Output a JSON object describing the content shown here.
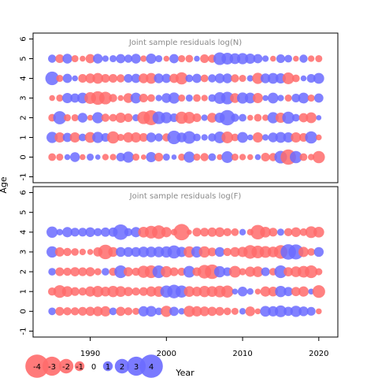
{
  "chart_data": {
    "type": "scatter",
    "subtype": "bubble-residual",
    "xlabel": "Year",
    "ylabel": "Age",
    "xlim": [
      1982.5,
      2022.5
    ],
    "ylim": [
      -1.3,
      6.3
    ],
    "x_ticks": [
      1990,
      2000,
      2010,
      2020
    ],
    "y_ticks": [
      -1,
      0,
      1,
      2,
      3,
      4,
      5,
      6
    ],
    "colors": {
      "positive": "#6b6bff",
      "negative": "#ff6b6b"
    },
    "legend": {
      "position": "bottom-left",
      "values": [
        -4,
        -3,
        -2,
        -1,
        0,
        1,
        2,
        3,
        4
      ]
    },
    "panels": [
      {
        "title": "Joint sample residuals log(N)",
        "years": [
          1985,
          1986,
          1987,
          1988,
          1989,
          1990,
          1991,
          1992,
          1993,
          1994,
          1995,
          1996,
          1997,
          1998,
          1999,
          2000,
          2001,
          2002,
          2003,
          2004,
          2005,
          2006,
          2007,
          2008,
          2009,
          2010,
          2011,
          2012,
          2013,
          2014,
          2015,
          2016,
          2017,
          2018,
          2019,
          2020
        ],
        "ages": [
          0,
          1,
          2,
          3,
          4,
          5
        ],
        "residuals": [
          [
            -0.6,
            -0.5,
            0.3,
            1.0,
            -0.3,
            0.5,
            0.2,
            -0.4,
            -0.4,
            0.8,
            1.3,
            -0.5,
            -0.2,
            1.1,
            -0.8,
            0.5,
            0.2,
            -0.5,
            1.3,
            -0.5,
            -0.7,
            0.6,
            -0.3,
            1.4,
            -0.5,
            -0.4,
            -0.3,
            0.3,
            -0.8,
            -0.7,
            1.6,
            -2.2,
            1.5,
            -0.6,
            -0.4,
            -1.5
          ],
          [
            1.3,
            -1.1,
            0.9,
            -1.1,
            0.6,
            -1.2,
            1.3,
            0.8,
            -1.5,
            -0.5,
            -1.1,
            -1.1,
            -0.8,
            1.0,
            0.7,
            -0.7,
            1.8,
            1.0,
            1.6,
            0.6,
            0.4,
            0.7,
            1.4,
            -1.4,
            -0.6,
            1.2,
            0.3,
            -1.1,
            0.4,
            1.0,
            1.2,
            1.1,
            -1.1,
            -0.8,
            1.5,
            -0.3
          ],
          [
            -0.6,
            1.7,
            -0.5,
            -0.5,
            1.0,
            -0.3,
            1.3,
            -0.7,
            -0.6,
            -1.1,
            -0.8,
            0.5,
            -1.6,
            -2.1,
            1.6,
            1.3,
            0.8,
            -1.5,
            -1.4,
            -0.8,
            0.4,
            -1.0,
            1.1,
            2.2,
            0.7,
            0.6,
            -0.3,
            -0.6,
            -0.4,
            1.3,
            -1.1,
            1.5,
            0.6,
            -0.9,
            -1.2,
            0.2
          ],
          [
            -0.3,
            -0.5,
            1.1,
            0.9,
            1.2,
            -1.4,
            -1.8,
            -1.6,
            -0.7,
            -0.3,
            -1.0,
            1.2,
            -0.8,
            -0.6,
            0.4,
            1.0,
            1.3,
            -0.5,
            0.5,
            -0.6,
            -0.4,
            0.6,
            1.4,
            1.6,
            -1.0,
            1.3,
            1.2,
            -1.1,
            0.3,
            1.2,
            0.4,
            -0.5,
            0.8,
            1.2,
            -0.5,
            0.9
          ],
          [
            1.8,
            -0.5,
            0.9,
            0.3,
            -0.8,
            -1.0,
            -1.2,
            -0.8,
            -0.8,
            -0.7,
            0.8,
            0.9,
            -1.0,
            -1.2,
            1.0,
            0.9,
            -0.9,
            -1.5,
            0.6,
            0.9,
            -0.6,
            0.7,
            1.0,
            1.0,
            -0.7,
            -0.5,
            0.4,
            -1.3,
            1.0,
            1.2,
            1.1,
            -1.4,
            -0.6,
            0.3,
            0.8,
            1.2
          ],
          [
            0.7,
            -0.8,
            1.0,
            -0.5,
            -0.3,
            -0.9,
            1.0,
            0.4,
            0.5,
            0.9,
            0.7,
            1.0,
            -0.4,
            1.1,
            0.5,
            -0.3,
            0.9,
            -0.5,
            -0.6,
            0.3,
            -0.8,
            -0.7,
            1.6,
            1.4,
            1.2,
            1.3,
            1.1,
            0.9,
            0.4,
            -0.3,
            0.8,
            0.6,
            -0.3,
            0.7,
            -0.4,
            -0.5
          ]
        ]
      },
      {
        "title": "Joint sample residuals log(F)",
        "years": [
          1985,
          1986,
          1987,
          1988,
          1989,
          1990,
          1991,
          1992,
          1993,
          1994,
          1995,
          1996,
          1997,
          1998,
          1999,
          2000,
          2001,
          2002,
          2003,
          2004,
          2005,
          2006,
          2007,
          2008,
          2009,
          2010,
          2011,
          2012,
          2013,
          2014,
          2015,
          2016,
          2017,
          2018,
          2019,
          2020
        ],
        "ages": [
          0,
          1,
          2,
          3,
          4
        ],
        "residuals": [
          [
            0.6,
            -0.8,
            -0.7,
            -0.7,
            -0.8,
            -0.9,
            -1.0,
            -1.1,
            0.6,
            -0.9,
            -0.7,
            -0.5,
            1.1,
            1.2,
            0.6,
            -1.3,
            0.9,
            0.4,
            -1.3,
            -1.1,
            -1.0,
            -0.9,
            -0.8,
            -0.6,
            -0.5,
            0.4,
            -1.0,
            -0.3,
            1.2,
            1.1,
            1.4,
            0.9,
            1.3,
            1.0,
            0.8,
            -0.3
          ],
          [
            -0.7,
            -1.6,
            -1.2,
            -0.8,
            -0.7,
            -1.1,
            -1.3,
            -1.0,
            -1.3,
            -1.2,
            -0.9,
            -0.7,
            -0.8,
            -1.1,
            -1.2,
            1.5,
            1.8,
            1.5,
            -1.2,
            -1.0,
            -1.3,
            -1.2,
            -1.4,
            -1.5,
            0.3,
            1.0,
            0.4,
            -0.3,
            -1.1,
            -1.0,
            1.3,
            0.9,
            -0.9,
            -1.1,
            0.3,
            -1.6
          ],
          [
            0.6,
            -0.8,
            -0.7,
            -0.9,
            -0.8,
            -0.9,
            -0.5,
            0.6,
            -0.7,
            1.6,
            -0.9,
            -0.7,
            -1.5,
            -1.6,
            1.6,
            -1.3,
            -0.8,
            -0.7,
            1.4,
            -0.8,
            -1.8,
            -2.0,
            1.3,
            0.8,
            -1.4,
            -0.5,
            -1.1,
            -1.2,
            0.8,
            -0.6,
            1.6,
            -0.9,
            -1.2,
            -1.4,
            -1.6,
            -0.5
          ],
          [
            1.3,
            -0.9,
            -0.7,
            -0.6,
            -0.4,
            -0.3,
            -0.9,
            -2.0,
            -1.0,
            1.0,
            1.0,
            1.0,
            1.2,
            1.2,
            1.2,
            1.3,
            1.7,
            1.1,
            -1.3,
            1.3,
            -1.3,
            -0.8,
            1.0,
            -0.7,
            -1.0,
            -1.1,
            -1.8,
            -1.6,
            -1.4,
            -1.2,
            -1.8,
            2.2,
            2.1,
            -1.1,
            -0.6,
            1.0
          ],
          [
            1.3,
            0.4,
            1.1,
            0.8,
            0.8,
            1.0,
            0.7,
            0.9,
            0.9,
            2.2,
            0.7,
            1.1,
            -1.2,
            -1.6,
            -1.8,
            -1.1,
            -0.4,
            -2.4,
            -0.2,
            -0.8,
            -0.8,
            -0.9,
            -1.0,
            -0.7,
            -0.6,
            0.4,
            -0.4,
            -2.0,
            -1.2,
            -0.8,
            0.5,
            -0.7,
            -1.0,
            -0.6,
            -1.4,
            -1.2
          ]
        ]
      }
    ]
  }
}
